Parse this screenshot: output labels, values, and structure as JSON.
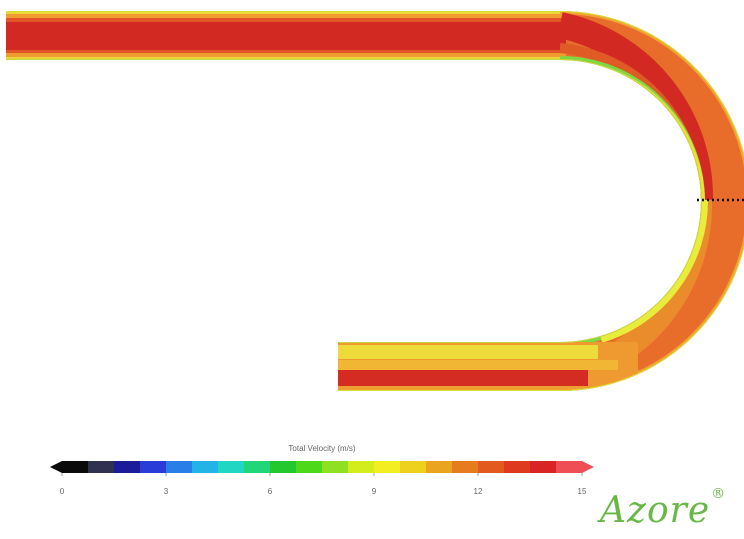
{
  "colorbar": {
    "title": "Total Velocity (m/s)",
    "ticks": [
      "0",
      "3",
      "6",
      "9",
      "12",
      "15"
    ],
    "range": [
      0,
      15
    ],
    "colors": [
      "#0a0a0a",
      "#303050",
      "#1c1c9a",
      "#2a3cd8",
      "#2a7ee8",
      "#22b4e6",
      "#22d6c4",
      "#20d678",
      "#22c82e",
      "#4ed81a",
      "#8ee020",
      "#d2ec1c",
      "#f2ee22",
      "#eed01e",
      "#eaa420",
      "#e67c1e",
      "#e25a1e",
      "#de3a20",
      "#d82424",
      "#ee4e54"
    ]
  },
  "logo": {
    "text": "Azore",
    "mark": "®",
    "color": "#67b845"
  },
  "flow": {
    "description_colors": {
      "fast": "#d42a22",
      "high": "#e7682a",
      "mid": "#f4b83a",
      "low": "#eee836",
      "wall": "#7bd83f"
    }
  }
}
